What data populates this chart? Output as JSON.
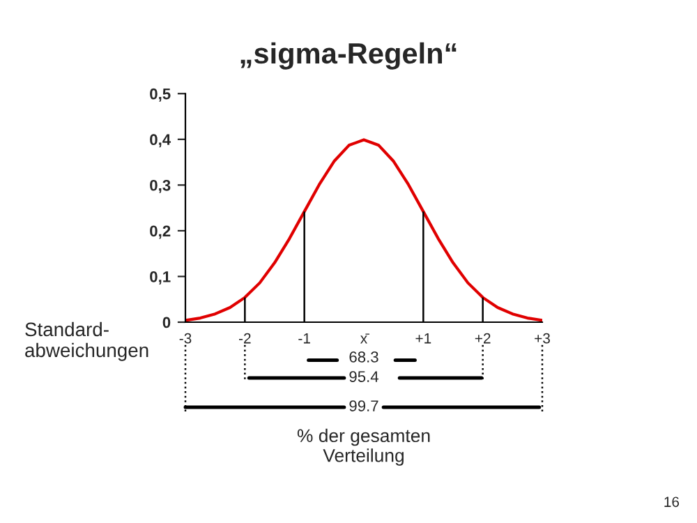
{
  "chart_data": {
    "type": "line",
    "title": "„sigma-Regeln“",
    "x": [
      -3,
      -2.75,
      -2.5,
      -2.25,
      -2,
      -1.75,
      -1.5,
      -1.25,
      -1,
      -0.75,
      -0.5,
      -0.25,
      0,
      0.25,
      0.5,
      0.75,
      1,
      1.25,
      1.5,
      1.75,
      2,
      2.25,
      2.5,
      2.75,
      3
    ],
    "series": [
      {
        "color": "#e00000",
        "values": [
          0.004,
          0.009,
          0.018,
          0.032,
          0.054,
          0.086,
          0.13,
          0.183,
          0.242,
          0.301,
          0.352,
          0.387,
          0.399,
          0.387,
          0.352,
          0.301,
          0.242,
          0.183,
          0.13,
          0.086,
          0.054,
          0.032,
          0.018,
          0.009,
          0.004
        ]
      }
    ],
    "xlim": [
      -3,
      3
    ],
    "xticks": [
      {
        "value": -3,
        "label": "-3"
      },
      {
        "value": -2,
        "label": "-2"
      },
      {
        "value": -1,
        "label": "-1"
      },
      {
        "value": 0,
        "label": "x̄"
      },
      {
        "value": 1,
        "label": "+1"
      },
      {
        "value": 2,
        "label": "+2"
      },
      {
        "value": 3,
        "label": "+3"
      }
    ],
    "ylim": [
      0,
      0.5
    ],
    "yticks": [
      {
        "value": 0,
        "label": "0"
      },
      {
        "value": 0.1,
        "label": "0,1"
      },
      {
        "value": 0.2,
        "label": "0,2"
      },
      {
        "value": 0.3,
        "label": "0,3"
      },
      {
        "value": 0.4,
        "label": "0,4"
      },
      {
        "value": 0.5,
        "label": "0,5"
      }
    ],
    "ref_lines": [
      {
        "axis": "x",
        "value": -2,
        "color": "#000000"
      },
      {
        "axis": "x",
        "value": -1,
        "color": "#000000"
      },
      {
        "axis": "x",
        "value": 1,
        "color": "#000000"
      },
      {
        "axis": "x",
        "value": 2,
        "color": "#000000"
      }
    ],
    "annotations": [
      "Standard-\nabweichungen",
      "68.3",
      "95.4",
      "99.7",
      "% der gesamten\nVerteilung",
      "16"
    ],
    "grid": false,
    "legend": false,
    "marker": "none",
    "line_style": "solid"
  }
}
